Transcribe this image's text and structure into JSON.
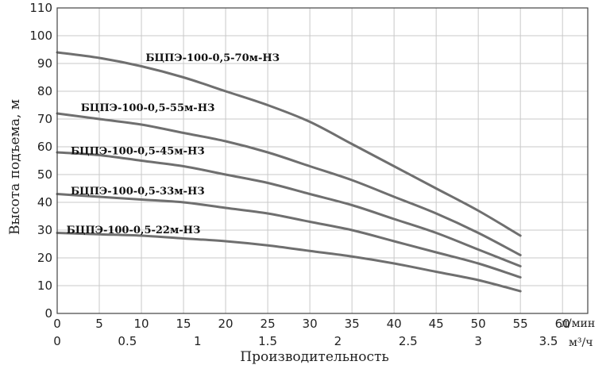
{
  "chart_data": {
    "type": "line",
    "ylabel": "Высота подъема, м",
    "xlabel": "Производительность",
    "x_unit_primary": "л/мин",
    "x_unit_secondary": "м³/ч",
    "xlim": [
      0,
      63
    ],
    "ylim": [
      0,
      110
    ],
    "y_ticks": [
      "0",
      "10",
      "20",
      "30",
      "40",
      "50",
      "60",
      "70",
      "80",
      "90",
      "100",
      "110"
    ],
    "x_ticks_primary": [
      "0",
      "5",
      "10",
      "15",
      "20",
      "25",
      "30",
      "35",
      "40",
      "45",
      "50",
      "55",
      "60"
    ],
    "x_ticks_secondary": [
      "0",
      "0.5",
      "1",
      "1.5",
      "2",
      "2.5",
      "3",
      "3.5"
    ],
    "grid": true,
    "series": [
      {
        "name": "БЦПЭ-100-0,5-70м-НЗ",
        "x": [
          0,
          5,
          10,
          15,
          20,
          25,
          30,
          35,
          40,
          45,
          50,
          55
        ],
        "y": [
          94,
          92,
          89,
          85,
          80,
          75,
          69,
          61,
          53,
          45,
          37,
          28
        ]
      },
      {
        "name": "БЦПЭ-100-0,5-55м-НЗ",
        "x": [
          0,
          5,
          10,
          15,
          20,
          25,
          30,
          35,
          40,
          45,
          50,
          55
        ],
        "y": [
          72,
          70,
          68,
          65,
          62,
          58,
          53,
          48,
          42,
          36,
          29,
          21
        ]
      },
      {
        "name": "БЦПЭ-100-0,5-45м-НЗ",
        "x": [
          0,
          5,
          10,
          15,
          20,
          25,
          30,
          35,
          40,
          45,
          50,
          55
        ],
        "y": [
          58,
          57,
          55,
          53,
          50,
          47,
          43,
          39,
          34,
          29,
          23,
          17
        ]
      },
      {
        "name": "БЦПЭ-100-0,5-33м-НЗ",
        "x": [
          0,
          5,
          10,
          15,
          20,
          25,
          30,
          35,
          40,
          45,
          50,
          55
        ],
        "y": [
          43,
          42,
          41,
          40,
          38,
          36,
          33,
          30,
          26,
          22,
          18,
          13
        ]
      },
      {
        "name": "БЦПЭ-100-0,5-22м-НЗ",
        "x": [
          0,
          5,
          10,
          15,
          20,
          25,
          30,
          35,
          40,
          45,
          50,
          55
        ],
        "y": [
          29,
          28.5,
          28,
          27,
          26,
          24.5,
          22.5,
          20.5,
          18,
          15,
          12,
          8
        ]
      }
    ]
  }
}
